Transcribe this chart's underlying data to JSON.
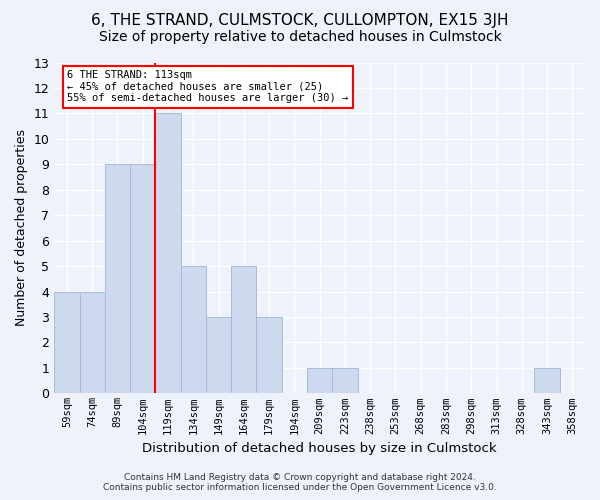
{
  "title": "6, THE STRAND, CULMSTOCK, CULLOMPTON, EX15 3JH",
  "subtitle": "Size of property relative to detached houses in Culmstock",
  "xlabel": "Distribution of detached houses by size in Culmstock",
  "ylabel": "Number of detached properties",
  "bar_labels": [
    "59sqm",
    "74sqm",
    "89sqm",
    "104sqm",
    "119sqm",
    "134sqm",
    "149sqm",
    "164sqm",
    "179sqm",
    "194sqm",
    "209sqm",
    "223sqm",
    "238sqm",
    "253sqm",
    "268sqm",
    "283sqm",
    "298sqm",
    "313sqm",
    "328sqm",
    "343sqm",
    "358sqm"
  ],
  "bar_values": [
    4,
    4,
    9,
    9,
    11,
    5,
    3,
    5,
    3,
    0,
    1,
    1,
    0,
    0,
    0,
    0,
    0,
    0,
    0,
    1,
    0
  ],
  "bar_color": "#ccd9ee",
  "bar_edge_color": "#aabbd4",
  "annotation_text": "6 THE STRAND: 113sqm\n← 45% of detached houses are smaller (25)\n55% of semi-detached houses are larger (30) →",
  "ylim": [
    0,
    13
  ],
  "yticks": [
    0,
    1,
    2,
    3,
    4,
    5,
    6,
    7,
    8,
    9,
    10,
    11,
    12,
    13
  ],
  "footer_text": "Contains HM Land Registry data © Crown copyright and database right 2024.\nContains public sector information licensed under the Open Government Licence v3.0.",
  "bg_color": "#edf2fb",
  "plot_bg_color": "#edf2fb",
  "grid_color": "white",
  "title_fontsize": 11,
  "subtitle_fontsize": 10,
  "xlabel_fontsize": 9.5,
  "ylabel_fontsize": 9
}
